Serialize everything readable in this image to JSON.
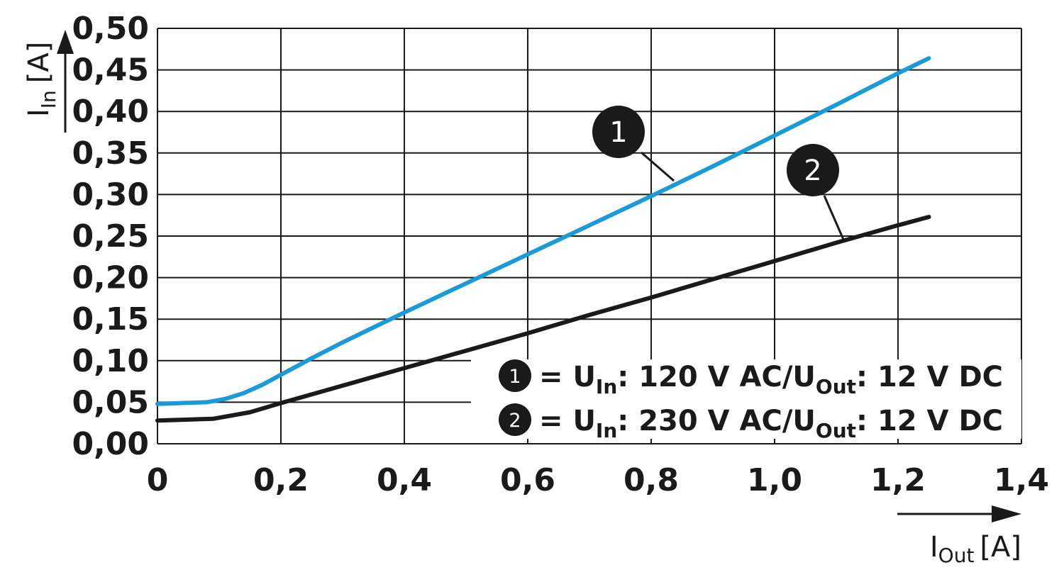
{
  "chart_data": {
    "type": "line",
    "xlabel": "I",
    "xlabel_sub": "Out",
    "xlabel_unit": "[A]",
    "ylabel": "I",
    "ylabel_sub": "In",
    "ylabel_unit": "[A]",
    "xlim": [
      0,
      1.4
    ],
    "ylim": [
      0,
      0.5
    ],
    "x_ticks": [
      "0",
      "0,2",
      "0,4",
      "0,6",
      "0,8",
      "1,0",
      "1,2",
      "1,4"
    ],
    "y_ticks": [
      "0,00",
      "0,05",
      "0,10",
      "0,15",
      "0,20",
      "0,25",
      "0,30",
      "0,35",
      "0,40",
      "0,45",
      "0,50"
    ],
    "grid": true,
    "legend_position": "bottom-right",
    "series": [
      {
        "marker": "1",
        "color": "#1b9ad6",
        "legend": {
          "prefix": "= U",
          "sub1": "In",
          "mid": ": 120 V AC/U",
          "sub2": "Out",
          "suffix": ": 12 V DC"
        },
        "x": [
          0,
          0.08,
          0.11,
          0.14,
          0.17,
          0.2,
          0.25,
          0.3,
          0.4,
          0.5,
          0.6,
          0.7,
          0.8,
          0.9,
          1.0,
          1.1,
          1.2,
          1.25
        ],
        "y": [
          0.048,
          0.05,
          0.054,
          0.061,
          0.071,
          0.083,
          0.103,
          0.122,
          0.158,
          0.193,
          0.228,
          0.263,
          0.298,
          0.334,
          0.371,
          0.408,
          0.446,
          0.464
        ]
      },
      {
        "marker": "2",
        "color": "#1a1a1a",
        "legend": {
          "prefix": "= U",
          "sub1": "In",
          "mid": ": 230 V AC/U",
          "sub2": "Out",
          "suffix": ": 12 V DC"
        },
        "x": [
          0,
          0.09,
          0.15,
          0.2,
          0.3,
          0.4,
          0.5,
          0.6,
          0.7,
          0.8,
          0.9,
          1.0,
          1.1,
          1.2,
          1.25
        ],
        "y": [
          0.028,
          0.03,
          0.038,
          0.049,
          0.07,
          0.091,
          0.112,
          0.133,
          0.155,
          0.176,
          0.198,
          0.22,
          0.242,
          0.263,
          0.273
        ]
      }
    ]
  }
}
